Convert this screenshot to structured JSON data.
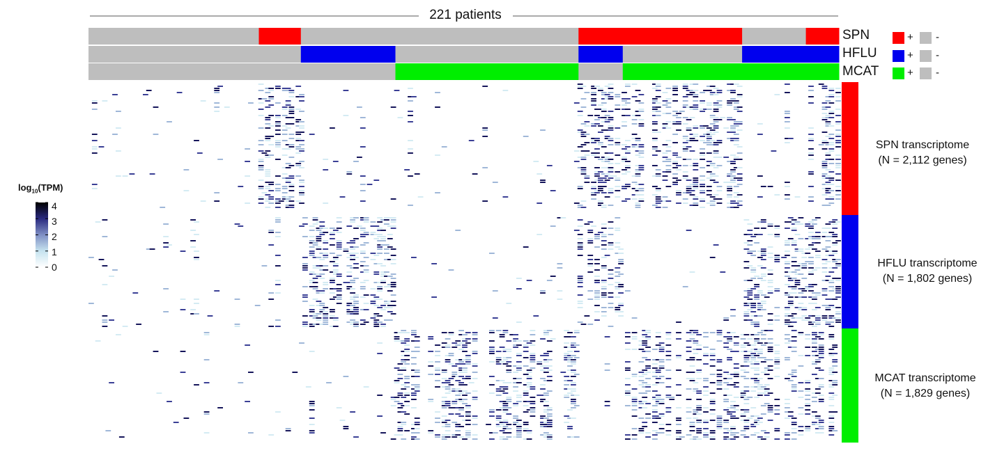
{
  "header": {
    "title": "221 patients"
  },
  "tracks": [
    {
      "name": "SPN",
      "color": "#ff0000",
      "segments": [
        [
          0,
          0.227,
          "-"
        ],
        [
          0.227,
          0.283,
          "+"
        ],
        [
          0.283,
          0.653,
          "-"
        ],
        [
          0.653,
          0.871,
          "+"
        ],
        [
          0.871,
          0.956,
          "-"
        ],
        [
          0.956,
          1.0,
          "+"
        ]
      ]
    },
    {
      "name": "HFLU",
      "color": "#0000ee",
      "segments": [
        [
          0,
          0.283,
          "-"
        ],
        [
          0.283,
          0.409,
          "+"
        ],
        [
          0.409,
          0.653,
          "-"
        ],
        [
          0.653,
          0.712,
          "+"
        ],
        [
          0.712,
          0.871,
          "-"
        ],
        [
          0.871,
          1.0,
          "+"
        ]
      ]
    },
    {
      "name": "MCAT",
      "color": "#00ee00",
      "segments": [
        [
          0,
          0.409,
          "-"
        ],
        [
          0.409,
          0.653,
          "+"
        ],
        [
          0.653,
          0.712,
          "-"
        ],
        [
          0.712,
          1.0,
          "+"
        ]
      ]
    }
  ],
  "absent_color": "#bebebe",
  "legend": {
    "positive_label": "+",
    "negative_label": "-"
  },
  "blocks": [
    {
      "label_line1": "SPN transcriptome",
      "label_line2": "(N = 2,112 genes)",
      "color": "#ff0000"
    },
    {
      "label_line1": "HFLU transcriptome",
      "label_line2": "(N = 1,802 genes)",
      "color": "#0000ee"
    },
    {
      "label_line1": "MCAT transcriptome",
      "label_line2": "(N = 1,829 genes)",
      "color": "#00ee00"
    }
  ],
  "colorbar": {
    "title_main": "log",
    "title_sub": "10",
    "title_rest": "(TPM)",
    "ticks": [
      "4",
      "3",
      "2",
      "1",
      "0"
    ],
    "tick_values": [
      4,
      3,
      2,
      1,
      0
    ],
    "colors": [
      "#ffffff",
      "#c6e3ef",
      "#7f8fc4",
      "#2a2a80",
      "#000000"
    ]
  },
  "chart_data": {
    "type": "heatmap",
    "title": "221 patients",
    "n_patients": 221,
    "value_label": "log10(TPM)",
    "value_range": [
      0,
      4
    ],
    "row_groups": [
      {
        "name": "SPN transcriptome",
        "genes": 2112
      },
      {
        "name": "HFLU transcriptome",
        "genes": 1802
      },
      {
        "name": "MCAT transcriptome",
        "genes": 1829
      }
    ],
    "column_annotations": [
      "SPN",
      "HFLU",
      "MCAT"
    ]
  }
}
